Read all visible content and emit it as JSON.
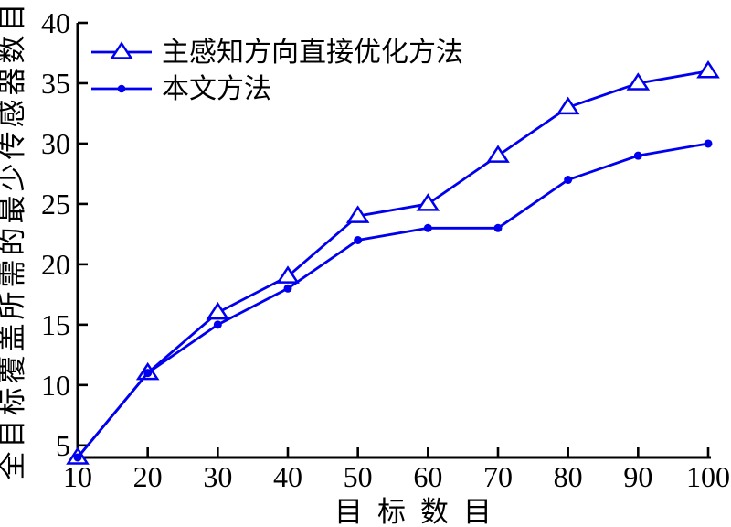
{
  "chart_data": {
    "type": "line",
    "title": "",
    "xlabel": "目标数目",
    "ylabel": "全目标覆盖所需的最少传感器数目",
    "x": [
      10,
      20,
      30,
      40,
      50,
      60,
      70,
      80,
      90,
      100
    ],
    "series": [
      {
        "name": "主感知方向直接优化方法",
        "marker": "triangle-open",
        "color": "#0000EE",
        "values": [
          4,
          11,
          16,
          19,
          24,
          25,
          29,
          33,
          35,
          36
        ]
      },
      {
        "name": "本文方法",
        "marker": "dot-filled",
        "color": "#0000EE",
        "values": [
          4,
          11,
          15,
          18,
          22,
          23,
          23,
          27,
          29,
          30
        ]
      }
    ],
    "xlim": [
      10,
      100
    ],
    "ylim": [
      4,
      40
    ],
    "xticks": [
      10,
      20,
      30,
      40,
      50,
      60,
      70,
      80,
      90,
      100
    ],
    "yticks": [
      5,
      10,
      15,
      20,
      25,
      30,
      35,
      40
    ],
    "grid": false,
    "legend_position": "top-left",
    "legend_frame": false
  },
  "colors": {
    "series_line": "#0000EE",
    "axis": "#000000",
    "background": "#ffffff",
    "text": "#000000"
  },
  "icons": {
    "triangle_marker": "triangle-open-icon",
    "dot_marker": "dot-filled-icon"
  }
}
